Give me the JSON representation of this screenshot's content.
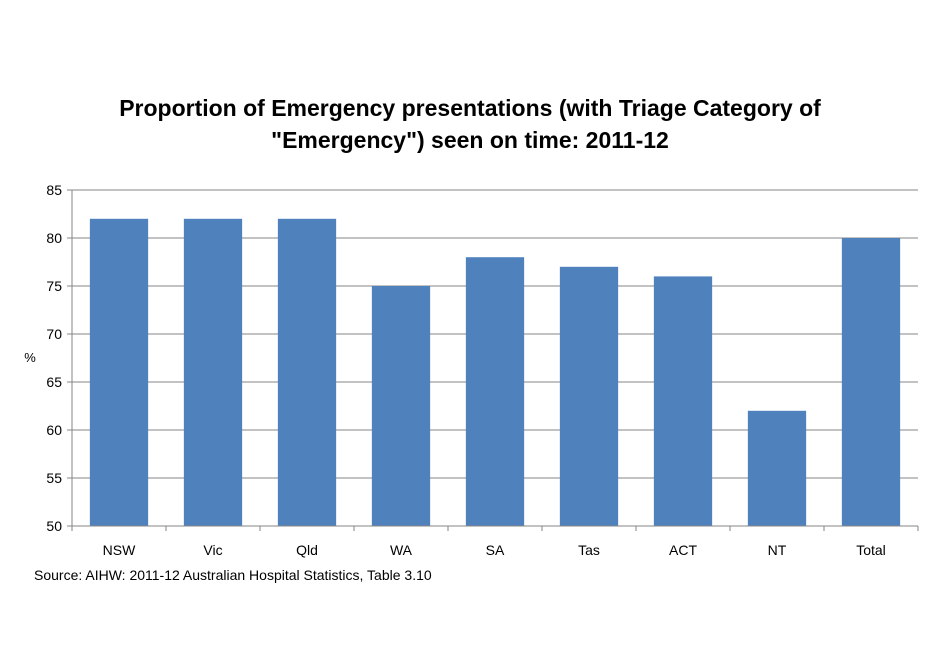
{
  "chart_data": {
    "type": "bar",
    "title_lines": [
      "Proportion of Emergency presentations (with Triage Category of",
      "\"Emergency\") seen on time: 2011-12"
    ],
    "categories": [
      "NSW",
      "Vic",
      "Qld",
      "WA",
      "SA",
      "Tas",
      "ACT",
      "NT",
      "Total"
    ],
    "values": [
      82,
      82,
      82,
      75,
      78,
      77,
      76,
      62,
      80
    ],
    "ylabel": "%",
    "ylim": [
      50,
      85
    ],
    "yticks": [
      50,
      55,
      60,
      65,
      70,
      75,
      80,
      85
    ],
    "grid": true,
    "legend": "none",
    "bar_color": "#4f81bd",
    "source": "Source: AIHW: 2011-12 Australian Hospital Statistics, Table 3.10"
  }
}
